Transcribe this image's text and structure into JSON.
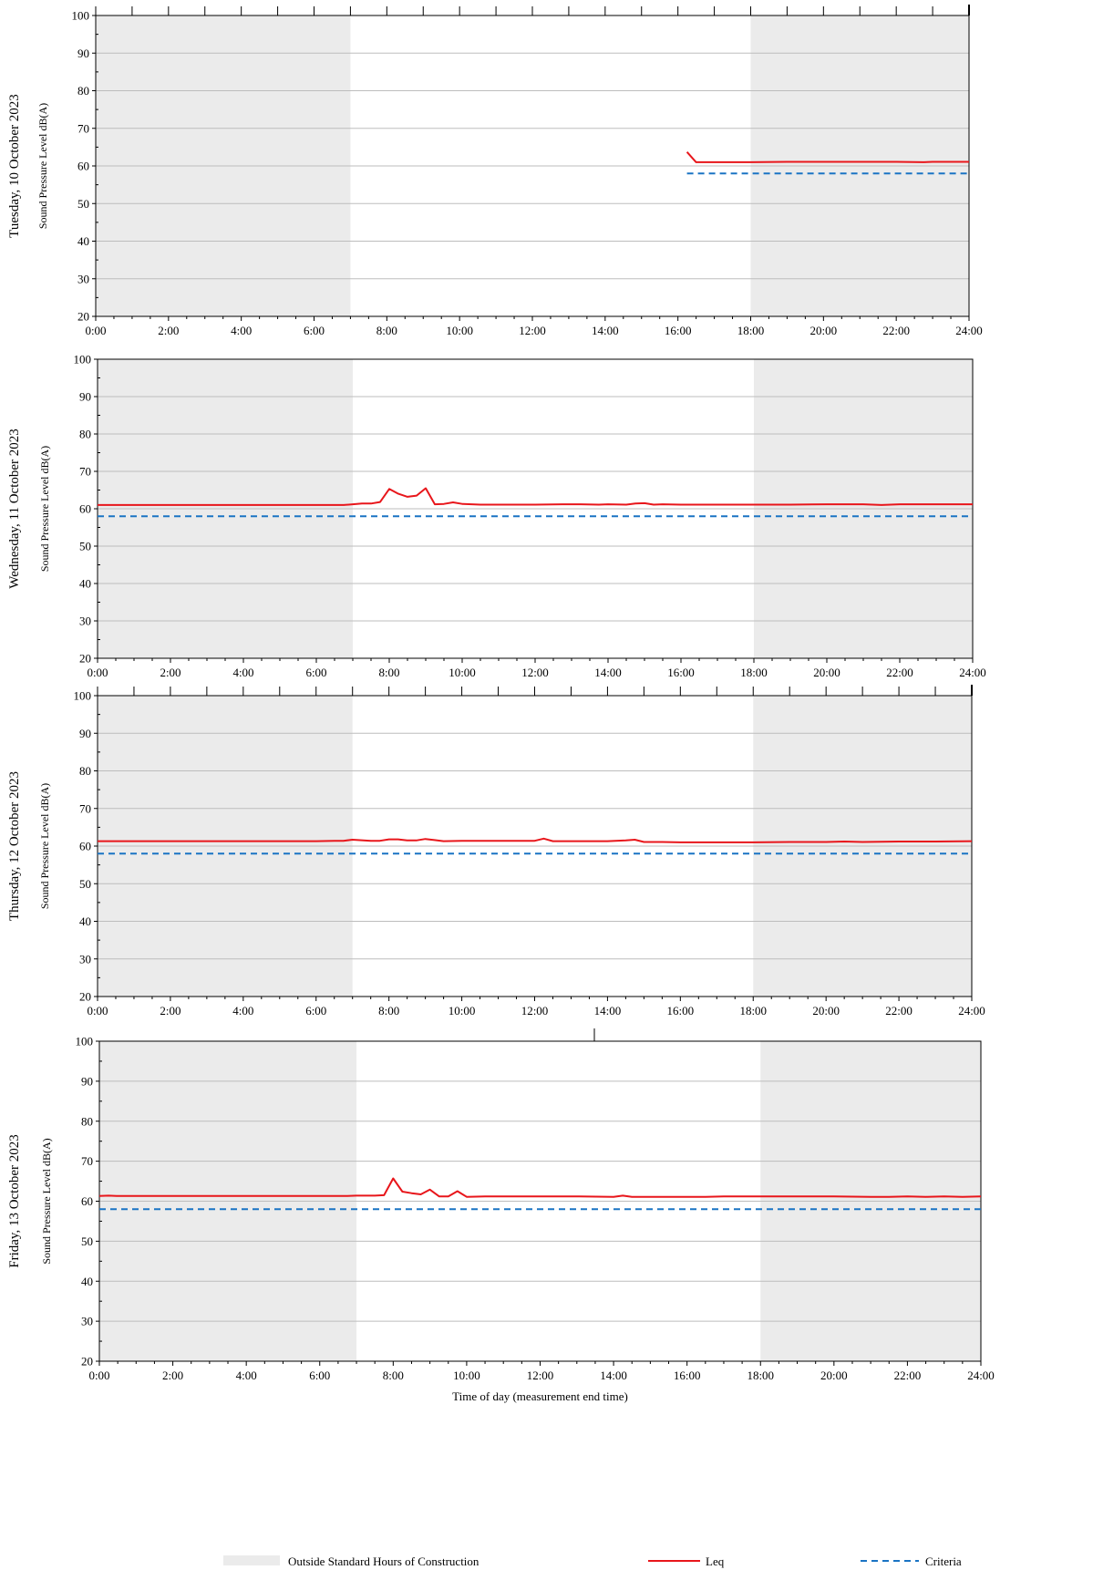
{
  "colors": {
    "shade": "#ebebeb",
    "leq": "#e8161b",
    "criteria": "#1a74c4",
    "grid": "#bdbdbd",
    "axis": "#000000"
  },
  "chart_data": [
    {
      "type": "line",
      "day_label": "Tuesday, 10 October 2023",
      "ylabel": "Sound Pressure Level dB(A)",
      "xlabel": "",
      "xlim": [
        0,
        24
      ],
      "ylim": [
        20,
        100
      ],
      "yticks": [
        20,
        30,
        40,
        50,
        60,
        70,
        80,
        90,
        100
      ],
      "xticks": [
        "0:00",
        "2:00",
        "4:00",
        "6:00",
        "8:00",
        "10:00",
        "12:00",
        "14:00",
        "16:00",
        "18:00",
        "20:00",
        "22:00",
        "24:00"
      ],
      "shade": [
        [
          0,
          7
        ],
        [
          18,
          24
        ]
      ],
      "grid": true,
      "series": [
        {
          "name": "Leq",
          "x": [
            16.25,
            16.5,
            17,
            18,
            19,
            20,
            21,
            22,
            22.75,
            23,
            24
          ],
          "y": [
            63.7,
            61.0,
            61.0,
            61.0,
            61.1,
            61.1,
            61.1,
            61.1,
            61.0,
            61.1,
            61.1
          ]
        },
        {
          "name": "Criteria",
          "x": [
            16.25,
            24
          ],
          "y": [
            58,
            58
          ]
        }
      ]
    },
    {
      "type": "line",
      "day_label": "Wednesday, 11 October 2023",
      "ylabel": "Sound Pressure Level dB(A)",
      "xlabel": "",
      "xlim": [
        0,
        24
      ],
      "ylim": [
        20,
        100
      ],
      "yticks": [
        20,
        30,
        40,
        50,
        60,
        70,
        80,
        90,
        100
      ],
      "xticks": [
        "0:00",
        "2:00",
        "4:00",
        "6:00",
        "8:00",
        "10:00",
        "12:00",
        "14:00",
        "16:00",
        "18:00",
        "20:00",
        "22:00",
        "24:00"
      ],
      "shade": [
        [
          0,
          7
        ],
        [
          18,
          24
        ]
      ],
      "grid": true,
      "series": [
        {
          "name": "Leq",
          "x": [
            0,
            1,
            2,
            3,
            4,
            5,
            6,
            6.75,
            7,
            7.25,
            7.5,
            7.75,
            8,
            8.25,
            8.5,
            8.75,
            9,
            9.25,
            9.5,
            9.75,
            10,
            10.5,
            11,
            12,
            12.75,
            13.25,
            13.75,
            14,
            14.5,
            14.75,
            15,
            15.25,
            15.5,
            16,
            17,
            18,
            19,
            20,
            21,
            21.5,
            22,
            23,
            24
          ],
          "y": [
            61.0,
            61.0,
            61.0,
            61.0,
            61.0,
            61.0,
            61.0,
            61.0,
            61.2,
            61.4,
            61.4,
            61.8,
            65.3,
            64.0,
            63.2,
            63.5,
            65.5,
            61.2,
            61.3,
            61.7,
            61.3,
            61.1,
            61.1,
            61.1,
            61.2,
            61.2,
            61.1,
            61.2,
            61.1,
            61.4,
            61.5,
            61.1,
            61.2,
            61.1,
            61.1,
            61.1,
            61.1,
            61.2,
            61.2,
            61.0,
            61.2,
            61.2,
            61.2
          ]
        },
        {
          "name": "Criteria",
          "x": [
            0,
            24
          ],
          "y": [
            58,
            58
          ]
        }
      ]
    },
    {
      "type": "line",
      "day_label": "Thursday, 12 October 2023",
      "ylabel": "Sound Pressure Level dB(A)",
      "xlabel": "",
      "xlim": [
        0,
        24
      ],
      "ylim": [
        20,
        100
      ],
      "yticks": [
        20,
        30,
        40,
        50,
        60,
        70,
        80,
        90,
        100
      ],
      "xticks": [
        "0:00",
        "2:00",
        "4:00",
        "6:00",
        "8:00",
        "10:00",
        "12:00",
        "14:00",
        "16:00",
        "18:00",
        "20:00",
        "22:00",
        "24:00"
      ],
      "shade": [
        [
          0,
          7
        ],
        [
          18,
          24
        ]
      ],
      "grid": true,
      "series": [
        {
          "name": "Leq",
          "x": [
            0,
            1,
            2,
            3,
            4,
            5,
            6,
            6.5,
            6.75,
            7,
            7.5,
            7.75,
            8,
            8.25,
            8.5,
            8.75,
            9,
            9.25,
            9.5,
            10,
            11,
            12,
            12.25,
            12.5,
            13,
            14,
            14.5,
            14.75,
            15,
            15.5,
            16,
            17,
            18,
            19,
            20,
            20.5,
            21,
            22,
            23,
            24
          ],
          "y": [
            61.3,
            61.3,
            61.3,
            61.3,
            61.3,
            61.3,
            61.3,
            61.4,
            61.4,
            61.7,
            61.4,
            61.4,
            61.8,
            61.8,
            61.5,
            61.5,
            61.9,
            61.6,
            61.3,
            61.4,
            61.4,
            61.4,
            62.0,
            61.3,
            61.3,
            61.3,
            61.5,
            61.7,
            61.1,
            61.1,
            61.0,
            61.0,
            61.0,
            61.1,
            61.1,
            61.2,
            61.1,
            61.2,
            61.2,
            61.3
          ]
        },
        {
          "name": "Criteria",
          "x": [
            0,
            24
          ],
          "y": [
            58,
            58
          ]
        }
      ]
    },
    {
      "type": "line",
      "day_label": "Friday, 13 October 2023",
      "ylabel": "Sound Pressure Level dB(A)",
      "xlabel": "Time of day (measurement end time)",
      "xlim": [
        0,
        24
      ],
      "ylim": [
        20,
        100
      ],
      "yticks": [
        20,
        30,
        40,
        50,
        60,
        70,
        80,
        90,
        100
      ],
      "xticks": [
        "0:00",
        "2:00",
        "4:00",
        "6:00",
        "8:00",
        "10:00",
        "12:00",
        "14:00",
        "16:00",
        "18:00",
        "20:00",
        "22:00",
        "24:00"
      ],
      "shade": [
        [
          0,
          7
        ],
        [
          18,
          24
        ]
      ],
      "grid": true,
      "series": [
        {
          "name": "Leq",
          "x": [
            0,
            0.25,
            0.5,
            1,
            2,
            3,
            4,
            5,
            6,
            6.75,
            7,
            7.25,
            7.5,
            7.75,
            8,
            8.25,
            8.5,
            8.75,
            9,
            9.25,
            9.5,
            9.75,
            10,
            10.5,
            11,
            12,
            13,
            14,
            14.25,
            14.5,
            15,
            15.5,
            16,
            16.5,
            17,
            18,
            19,
            20,
            21,
            21.5,
            22,
            22.5,
            23,
            23.5,
            24
          ],
          "y": [
            61.3,
            61.4,
            61.3,
            61.3,
            61.3,
            61.3,
            61.3,
            61.3,
            61.3,
            61.3,
            61.4,
            61.4,
            61.4,
            61.5,
            65.7,
            62.4,
            62.0,
            61.7,
            62.9,
            61.2,
            61.2,
            62.5,
            61.1,
            61.2,
            61.2,
            61.2,
            61.2,
            61.1,
            61.4,
            61.1,
            61.1,
            61.1,
            61.1,
            61.1,
            61.2,
            61.2,
            61.2,
            61.2,
            61.1,
            61.1,
            61.2,
            61.1,
            61.2,
            61.1,
            61.2
          ]
        },
        {
          "name": "Criteria",
          "x": [
            0,
            24
          ],
          "y": [
            58,
            58
          ]
        }
      ]
    }
  ],
  "legend": {
    "shade_label": "Outside Standard Hours of Construction",
    "leq_label": "Leq",
    "criteria_label": "Criteria"
  }
}
